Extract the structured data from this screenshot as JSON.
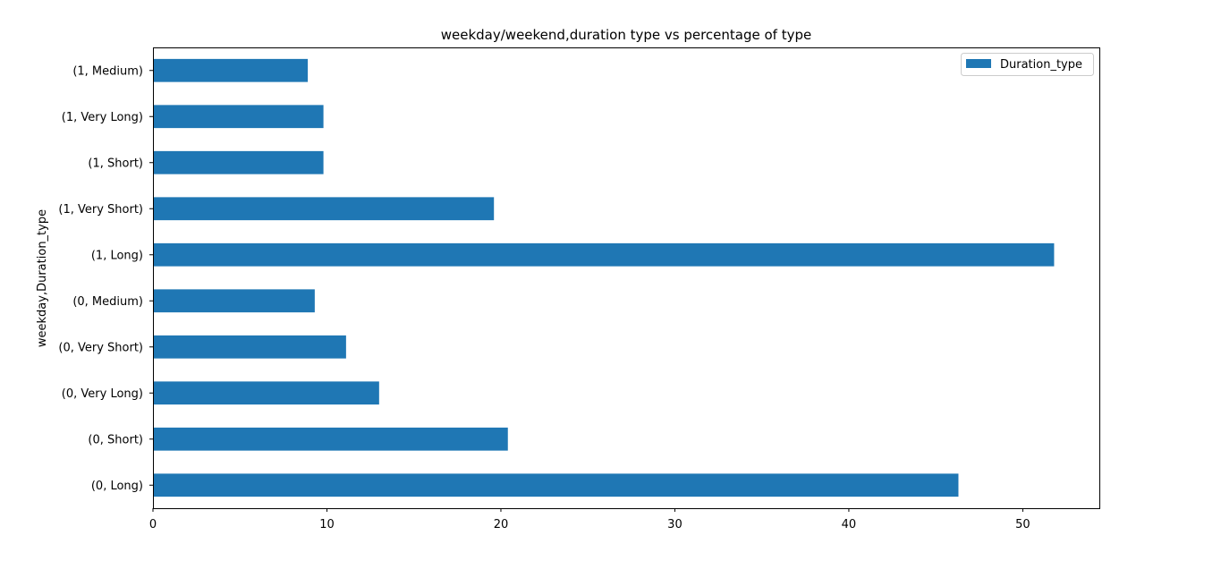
{
  "chart_data": {
    "type": "bar",
    "orientation": "horizontal",
    "title": "weekday/weekend,duration type vs percentage of type",
    "xlabel": "",
    "ylabel": "weekday,Duration_type",
    "categories": [
      "(0, Long)",
      "(0, Short)",
      "(0, Very Long)",
      "(0, Very Short)",
      "(0, Medium)",
      "(1, Long)",
      "(1, Very Short)",
      "(1, Short)",
      "(1, Very Long)",
      "(1, Medium)"
    ],
    "series": [
      {
        "name": "Duration_type",
        "color": "#1f77b4",
        "values": [
          46.3,
          20.4,
          13.0,
          11.1,
          9.3,
          51.8,
          19.6,
          9.8,
          9.8,
          8.9
        ]
      }
    ],
    "xlim": [
      0,
      54.4
    ],
    "xticks": [
      0,
      10,
      20,
      30,
      40,
      50
    ],
    "grid": false,
    "legend_position": "top-right"
  }
}
